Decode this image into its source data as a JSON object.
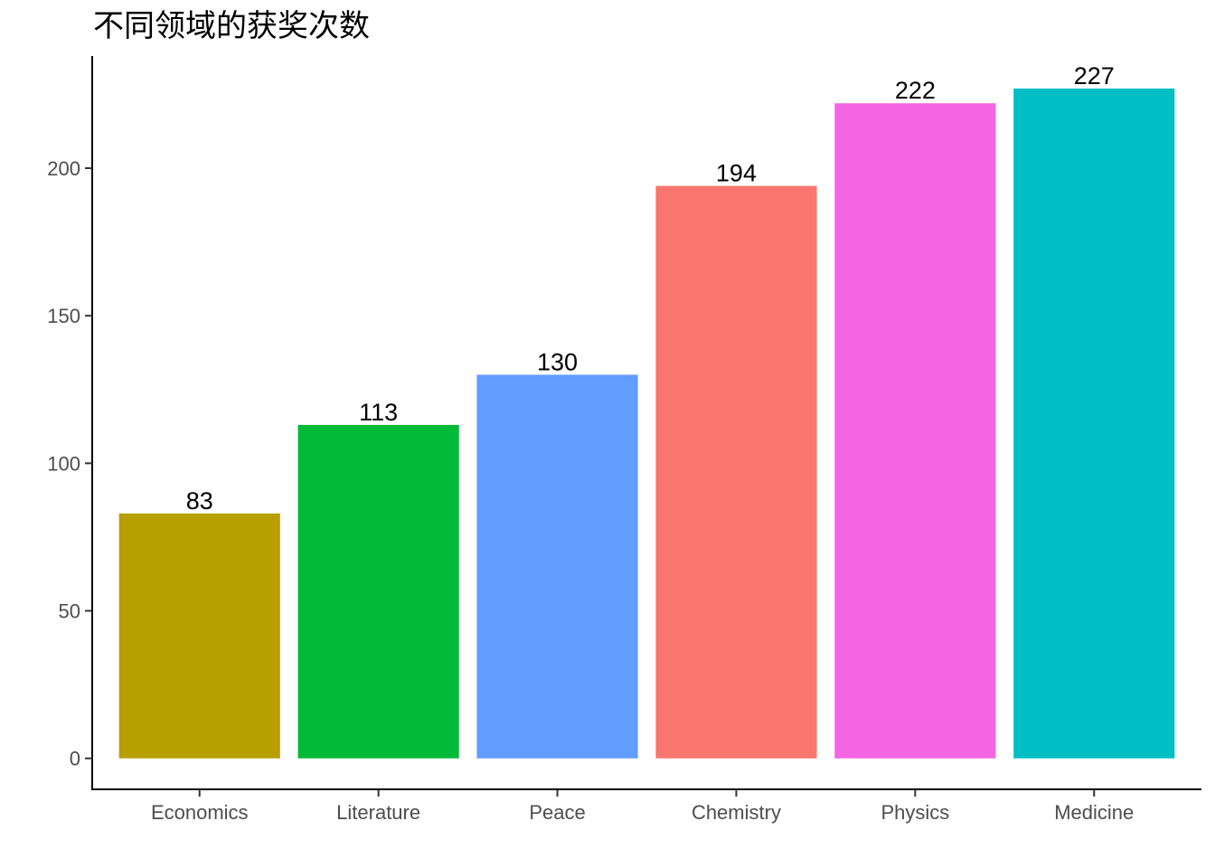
{
  "chart_data": {
    "type": "bar",
    "title": "不同领域的获奖次数",
    "xlabel": "",
    "ylabel": "",
    "categories": [
      "Economics",
      "Literature",
      "Peace",
      "Chemistry",
      "Physics",
      "Medicine"
    ],
    "values": [
      83,
      113,
      130,
      194,
      222,
      227
    ],
    "colors": [
      "#B79F00",
      "#00BA38",
      "#619CFF",
      "#F8766D",
      "#F564E3",
      "#00BFC4"
    ],
    "y_ticks": [
      0,
      50,
      100,
      150,
      200
    ],
    "ylim": [
      -10.5,
      238
    ],
    "grid": false,
    "legend": "none"
  }
}
